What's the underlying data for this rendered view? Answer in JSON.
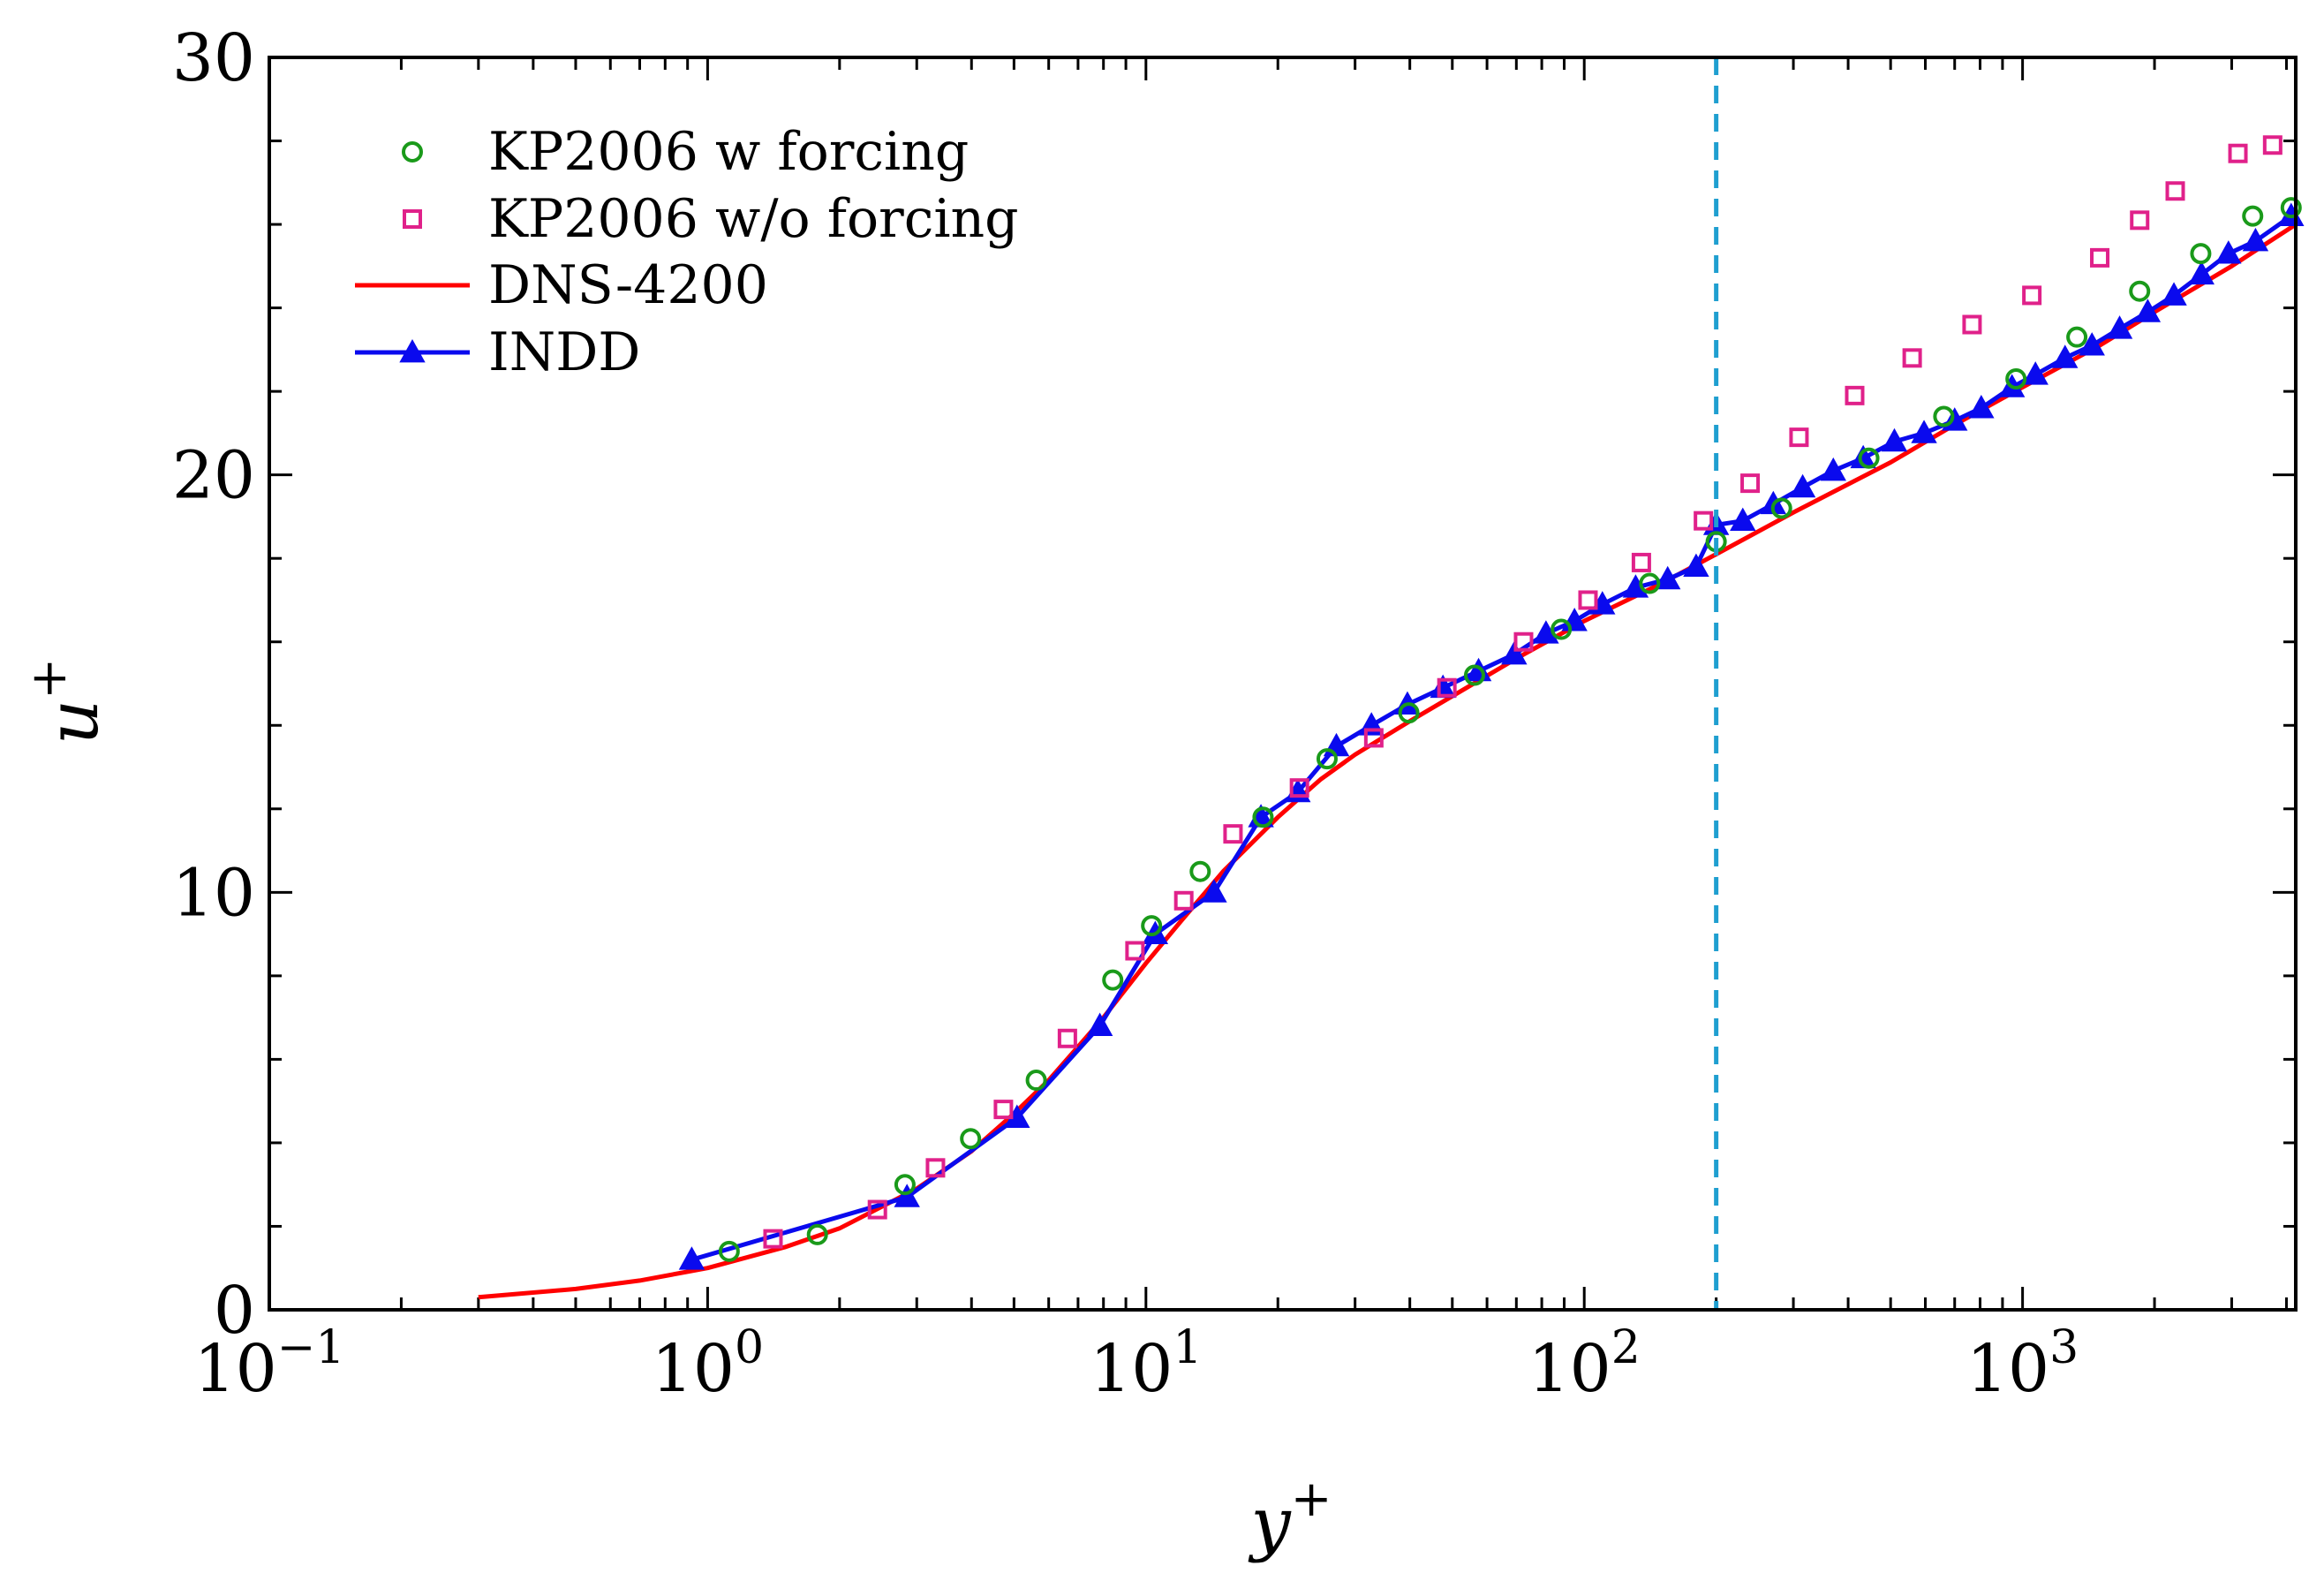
{
  "chart_data": {
    "type": "line",
    "xscale": "log",
    "xlim": [
      0.1,
      4200
    ],
    "ylim": [
      0,
      30
    ],
    "xlabel": "y",
    "xlabel_sup": "+",
    "ylabel": "u",
    "ylabel_sup": "+",
    "grid": false,
    "legend_position": "top-left",
    "x_ticks": [
      {
        "value": 0.1,
        "base": "10",
        "exp": "−1"
      },
      {
        "value": 1,
        "base": "10",
        "exp": "0"
      },
      {
        "value": 10,
        "base": "10",
        "exp": "1"
      },
      {
        "value": 100,
        "base": "10",
        "exp": "2"
      },
      {
        "value": 1000,
        "base": "10",
        "exp": "3"
      }
    ],
    "y_ticks": [
      {
        "value": 0,
        "label": "0"
      },
      {
        "value": 10,
        "label": "10"
      },
      {
        "value": 20,
        "label": "20"
      },
      {
        "value": 30,
        "label": "30"
      }
    ],
    "reference_line": {
      "x": 200,
      "color": "#1f9fd0",
      "style": "dashed"
    },
    "series": [
      {
        "name": "KP2006 w forcing",
        "marker": "circle",
        "color": "#1a9a1a",
        "points": [
          [
            1.12,
            1.4
          ],
          [
            1.78,
            1.8
          ],
          [
            2.82,
            3.0
          ],
          [
            3.98,
            4.1
          ],
          [
            5.62,
            5.5
          ],
          [
            8.4,
            7.9
          ],
          [
            10.3,
            9.2
          ],
          [
            13.3,
            10.5
          ],
          [
            18.5,
            11.8
          ],
          [
            25.9,
            13.2
          ],
          [
            39.8,
            14.3
          ],
          [
            56.2,
            15.2
          ],
          [
            88.6,
            16.3
          ],
          [
            141,
            17.4
          ],
          [
            200,
            18.4
          ],
          [
            282,
            19.2
          ],
          [
            446,
            20.4
          ],
          [
            661,
            21.4
          ],
          [
            966,
            22.3
          ],
          [
            1330,
            23.3
          ],
          [
            1850,
            24.4
          ],
          [
            2550,
            25.3
          ],
          [
            3350,
            26.2
          ],
          [
            4100,
            26.4
          ]
        ]
      },
      {
        "name": "KP2006 w/o forcing",
        "marker": "square",
        "color": "#e0218a",
        "points": [
          [
            1.41,
            1.7
          ],
          [
            2.44,
            2.4
          ],
          [
            3.31,
            3.4
          ],
          [
            4.73,
            4.8
          ],
          [
            6.62,
            6.5
          ],
          [
            9.44,
            8.6
          ],
          [
            12.2,
            9.8
          ],
          [
            15.8,
            11.4
          ],
          [
            22.4,
            12.5
          ],
          [
            33.1,
            13.7
          ],
          [
            48.6,
            14.9
          ],
          [
            72.7,
            16.0
          ],
          [
            102,
            17.0
          ],
          [
            135,
            17.9
          ],
          [
            187,
            18.9
          ],
          [
            239,
            19.8
          ],
          [
            309,
            20.9
          ],
          [
            414,
            21.9
          ],
          [
            560,
            22.8
          ],
          [
            767,
            23.6
          ],
          [
            1050,
            24.3
          ],
          [
            1500,
            25.2
          ],
          [
            1850,
            26.1
          ],
          [
            2230,
            26.8
          ],
          [
            3100,
            27.7
          ],
          [
            3720,
            27.9
          ]
        ]
      },
      {
        "name": "DNS-4200",
        "marker": "none",
        "color": "#ff0000",
        "points": [
          [
            0.3,
            0.3
          ],
          [
            0.5,
            0.5
          ],
          [
            0.7,
            0.7
          ],
          [
            1,
            1.0
          ],
          [
            1.5,
            1.5
          ],
          [
            2,
            1.95
          ],
          [
            3,
            2.9
          ],
          [
            4,
            3.8
          ],
          [
            5,
            4.7
          ],
          [
            6,
            5.5
          ],
          [
            7,
            6.3
          ],
          [
            8,
            7.0
          ],
          [
            10,
            8.3
          ],
          [
            12,
            9.3
          ],
          [
            15,
            10.5
          ],
          [
            20,
            11.8
          ],
          [
            25,
            12.7
          ],
          [
            30,
            13.3
          ],
          [
            40,
            14.1
          ],
          [
            50,
            14.7
          ],
          [
            70,
            15.6
          ],
          [
            100,
            16.5
          ],
          [
            150,
            17.4
          ],
          [
            200,
            18.1
          ],
          [
            300,
            19.1
          ],
          [
            500,
            20.3
          ],
          [
            700,
            21.2
          ],
          [
            1000,
            22.1
          ],
          [
            1500,
            23.1
          ],
          [
            2000,
            23.9
          ],
          [
            3000,
            25.0
          ],
          [
            4200,
            26.0
          ]
        ]
      },
      {
        "name": "INDD",
        "marker": "triangle",
        "color": "#0a0aee",
        "points": [
          [
            0.92,
            1.2
          ],
          [
            2.85,
            2.7
          ],
          [
            5.08,
            4.6
          ],
          [
            7.85,
            6.8
          ],
          [
            10.5,
            9.0
          ],
          [
            14.3,
            10.0
          ],
          [
            18.3,
            11.8
          ],
          [
            22.2,
            12.4
          ],
          [
            27.2,
            13.5
          ],
          [
            32.7,
            14.0
          ],
          [
            39.5,
            14.5
          ],
          [
            47.6,
            14.9
          ],
          [
            57.4,
            15.3
          ],
          [
            69.2,
            15.7
          ],
          [
            81.8,
            16.2
          ],
          [
            95,
            16.5
          ],
          [
            110,
            16.9
          ],
          [
            131,
            17.3
          ],
          [
            155,
            17.5
          ],
          [
            180,
            17.8
          ],
          [
            200,
            18.8
          ],
          [
            230,
            18.9
          ],
          [
            270,
            19.3
          ],
          [
            315,
            19.7
          ],
          [
            370,
            20.1
          ],
          [
            433,
            20.4
          ],
          [
            510,
            20.8
          ],
          [
            596,
            21.0
          ],
          [
            700,
            21.3
          ],
          [
            805,
            21.6
          ],
          [
            946,
            22.1
          ],
          [
            1070,
            22.4
          ],
          [
            1250,
            22.8
          ],
          [
            1440,
            23.1
          ],
          [
            1665,
            23.5
          ],
          [
            1930,
            23.9
          ],
          [
            2215,
            24.3
          ],
          [
            2560,
            24.8
          ],
          [
            2950,
            25.3
          ],
          [
            3400,
            25.6
          ],
          [
            4100,
            26.2
          ]
        ]
      }
    ]
  }
}
